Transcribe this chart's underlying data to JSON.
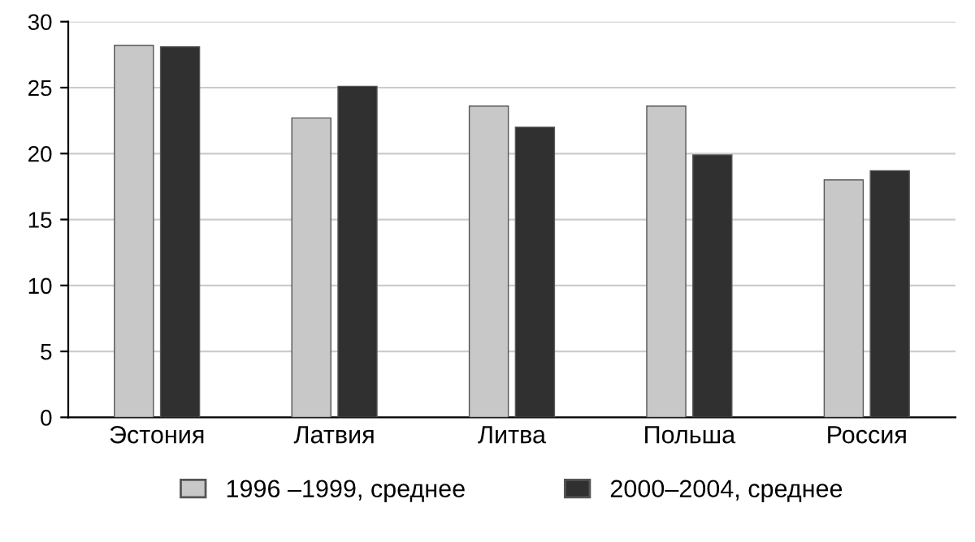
{
  "chart_data": {
    "type": "bar",
    "categories": [
      "Эстония",
      "Латвия",
      "Литва",
      "Польша",
      "Россия"
    ],
    "series": [
      {
        "name": "1996 –1999, среднее",
        "color": "#c8c8c8",
        "values": [
          28.2,
          22.7,
          23.6,
          23.6,
          18.0
        ]
      },
      {
        "name": "2000–2004, среднее",
        "color": "#303030",
        "values": [
          28.1,
          25.1,
          22.0,
          19.9,
          18.7
        ]
      }
    ],
    "ylim": [
      0,
      30
    ],
    "yticks": [
      0,
      5,
      10,
      15,
      20,
      25,
      30
    ],
    "grid": "y",
    "legend": "bottom"
  }
}
